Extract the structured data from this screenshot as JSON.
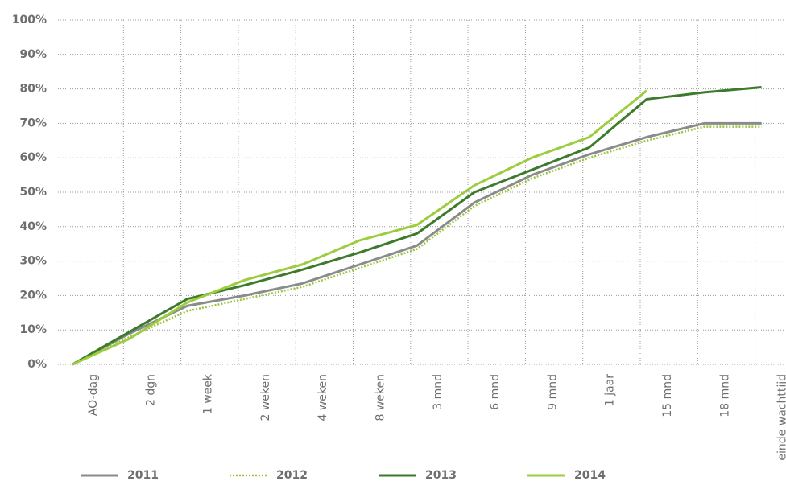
{
  "chart_data": {
    "type": "line",
    "categories": [
      "AO-dag",
      "2 dgn",
      "1 week",
      "2 weken",
      "4 weken",
      "8 weken",
      "3 mnd",
      "6 mnd",
      "9 mnd",
      "1 jaar",
      "15 mnd",
      "18 mnd",
      "einde wachttijd"
    ],
    "series": [
      {
        "name": "2011",
        "color": "#8a8b8d",
        "style": "solid",
        "values": [
          0,
          9,
          17,
          20,
          23.5,
          29,
          34.5,
          47,
          55,
          61,
          66,
          70,
          70
        ]
      },
      {
        "name": "2012",
        "color": "#9bc53d",
        "style": "dotted",
        "values": [
          0,
          8,
          15.5,
          19,
          22.5,
          28,
          33.5,
          46,
          54,
          60,
          65,
          69,
          69
        ]
      },
      {
        "name": "2013",
        "color": "#3d7b2c",
        "style": "solid",
        "values": [
          0,
          9.5,
          19,
          23,
          27.5,
          32.5,
          38,
          50,
          56.5,
          63,
          77,
          79,
          80.5
        ]
      },
      {
        "name": "2014",
        "color": "#9dcc3e",
        "style": "solid",
        "values": [
          0,
          7.5,
          18,
          24.5,
          29,
          36,
          40.5,
          52,
          60,
          66,
          79.5,
          null,
          null
        ]
      }
    ],
    "ylim": [
      0,
      100
    ],
    "yticks": [
      {
        "value": 0,
        "label": "0%"
      },
      {
        "value": 10,
        "label": "10%"
      },
      {
        "value": 20,
        "label": "20%"
      },
      {
        "value": 30,
        "label": "30%"
      },
      {
        "value": 40,
        "label": "40%"
      },
      {
        "value": 50,
        "label": "50%"
      },
      {
        "value": 60,
        "label": "60%"
      },
      {
        "value": 70,
        "label": "70%"
      },
      {
        "value": 80,
        "label": "80%"
      },
      {
        "value": 90,
        "label": "90%"
      },
      {
        "value": 100,
        "label": "100%"
      }
    ],
    "grid": true,
    "legend": "bottom"
  }
}
